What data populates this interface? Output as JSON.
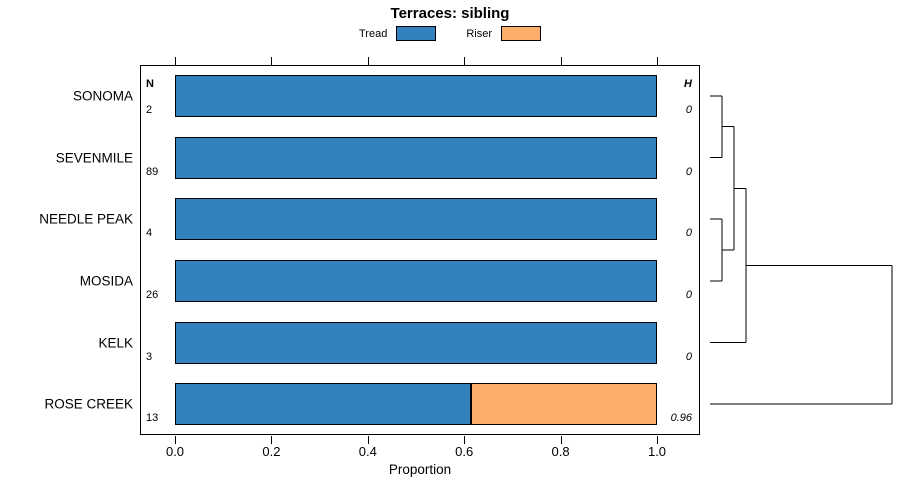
{
  "title": "Terraces: sibling",
  "legend": [
    {
      "label": "Tread",
      "color": "#3182BD"
    },
    {
      "label": "Riser",
      "color": "#FDAE6B"
    }
  ],
  "columns": {
    "n_header": "N",
    "h_header": "H"
  },
  "axis": {
    "xlabel": "Proportion",
    "ticks": [
      0.0,
      0.2,
      0.4,
      0.6,
      0.8,
      1.0
    ],
    "tick_labels": [
      "0.0",
      "0.2",
      "0.4",
      "0.6",
      "0.8",
      "1.0"
    ]
  },
  "chart_data": {
    "type": "bar",
    "stacked": true,
    "orientation": "horizontal",
    "title": "Terraces: sibling",
    "xlabel": "Proportion",
    "xlim": [
      0,
      1
    ],
    "categories": [
      "SONOMA",
      "SEVENMILE",
      "NEEDLE PEAK",
      "MOSIDA",
      "KELK",
      "ROSE CREEK"
    ],
    "series": [
      {
        "name": "Tread",
        "color": "#3182BD",
        "values": [
          1.0,
          1.0,
          1.0,
          1.0,
          1.0,
          0.615
        ]
      },
      {
        "name": "Riser",
        "color": "#FDAE6B",
        "values": [
          0,
          0,
          0,
          0,
          0,
          0.385
        ]
      }
    ],
    "n_values": [
      "2",
      "89",
      "4",
      "26",
      "3",
      "13"
    ],
    "h_values": [
      "0",
      "0",
      "0",
      "0",
      "0",
      "0.96"
    ],
    "dendrogram": {
      "root": {
        "h": 0.96,
        "children": [
          {
            "h": 0,
            "children": [
              {
                "h": 0,
                "children": [
                  {
                    "h": 0,
                    "children": [
                      "SONOMA",
                      "SEVENMILE"
                    ]
                  },
                  {
                    "h": 0,
                    "children": [
                      "NEEDLE PEAK",
                      "MOSIDA"
                    ]
                  }
                ]
              },
              "KELK"
            ]
          },
          "ROSE CREEK"
        ]
      }
    }
  }
}
